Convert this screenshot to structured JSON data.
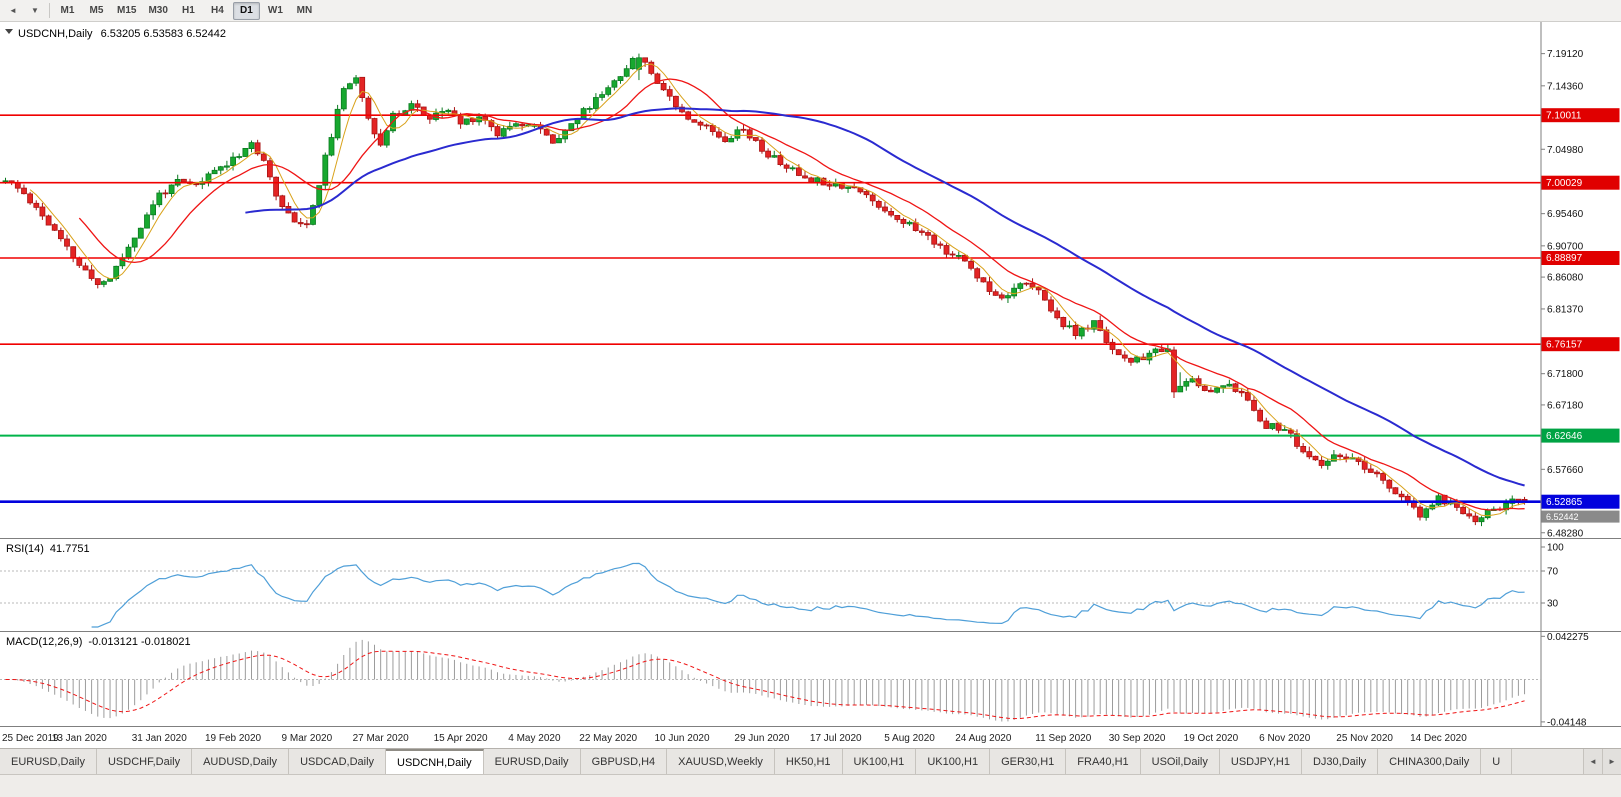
{
  "toolbar": {
    "left_icons": [
      {
        "name": "scroll-left-icon",
        "glyph": "◄"
      },
      {
        "name": "dropdown-icon",
        "glyph": "▼"
      }
    ],
    "timeframes": [
      "M1",
      "M5",
      "M15",
      "M30",
      "H1",
      "H4",
      "D1",
      "W1",
      "MN"
    ],
    "active_timeframe": "D1"
  },
  "chart": {
    "title": {
      "symbol": "USDCNH,Daily",
      "ohlc": "6.53205 6.53583 6.52442"
    },
    "y_axis": {
      "ticks": [
        "7.19120",
        "7.14360",
        "7.04980",
        "6.95460",
        "6.90700",
        "6.86080",
        "6.81370",
        "6.71800",
        "6.67180",
        "6.57660",
        "6.48280"
      ]
    },
    "x_axis": {
      "labels": [
        "25 Dec 2019",
        "13 Jan 2020",
        "31 Jan 2020",
        "19 Feb 2020",
        "9 Mar 2020",
        "27 Mar 2020",
        "15 Apr 2020",
        "4 May 2020",
        "22 May 2020",
        "10 Jun 2020",
        "29 Jun 2020",
        "17 Jul 2020",
        "5 Aug 2020",
        "24 Aug 2020",
        "11 Sep 2020",
        "30 Sep 2020",
        "19 Oct 2020",
        "6 Nov 2020",
        "25 Nov 2020",
        "14 Dec 2020"
      ],
      "label_days": [
        0,
        12,
        25,
        37,
        49,
        61,
        74,
        86,
        98,
        110,
        123,
        135,
        147,
        159,
        172,
        184,
        196,
        208,
        221,
        233
      ]
    },
    "level_badges": {
      "red": [
        "7.10011",
        "7.00029",
        "6.88897",
        "6.76157"
      ],
      "green": [
        "6.62646"
      ],
      "blue": [
        "6.52865"
      ],
      "bid": "6.52442"
    }
  },
  "chart_data": {
    "type": "candlestick",
    "symbol": "USDCNH",
    "timeframe": "Daily",
    "n_candles": 248,
    "seed": 11,
    "scale": {
      "price_max": 7.235,
      "price_min": 6.478
    },
    "price_anchors": [
      [
        0,
        7.003
      ],
      [
        3,
        6.985
      ],
      [
        6,
        6.952
      ],
      [
        9,
        6.915
      ],
      [
        12,
        6.878
      ],
      [
        15,
        6.85
      ],
      [
        17,
        6.86
      ],
      [
        20,
        6.906
      ],
      [
        23,
        6.95
      ],
      [
        25,
        6.984
      ],
      [
        28,
        7.0
      ],
      [
        31,
        6.996
      ],
      [
        34,
        7.018
      ],
      [
        37,
        7.036
      ],
      [
        40,
        7.06
      ],
      [
        42,
        7.028
      ],
      [
        44,
        6.986
      ],
      [
        46,
        6.952
      ],
      [
        49,
        6.936
      ],
      [
        51,
        7.0
      ],
      [
        53,
        7.072
      ],
      [
        55,
        7.135
      ],
      [
        57,
        7.16
      ],
      [
        59,
        7.098
      ],
      [
        61,
        7.055
      ],
      [
        63,
        7.098
      ],
      [
        66,
        7.118
      ],
      [
        69,
        7.094
      ],
      [
        72,
        7.108
      ],
      [
        74,
        7.088
      ],
      [
        77,
        7.1
      ],
      [
        80,
        7.074
      ],
      [
        83,
        7.092
      ],
      [
        86,
        7.084
      ],
      [
        89,
        7.062
      ],
      [
        92,
        7.088
      ],
      [
        95,
        7.114
      ],
      [
        98,
        7.142
      ],
      [
        101,
        7.172
      ],
      [
        103,
        7.186
      ],
      [
        105,
        7.163
      ],
      [
        107,
        7.14
      ],
      [
        109,
        7.116
      ],
      [
        111,
        7.098
      ],
      [
        114,
        7.082
      ],
      [
        117,
        7.066
      ],
      [
        120,
        7.082
      ],
      [
        123,
        7.048
      ],
      [
        126,
        7.03
      ],
      [
        129,
        7.012
      ],
      [
        132,
        7.004
      ],
      [
        135,
        6.999
      ],
      [
        138,
        6.993
      ],
      [
        141,
        6.974
      ],
      [
        144,
        6.954
      ],
      [
        147,
        6.938
      ],
      [
        150,
        6.92
      ],
      [
        153,
        6.9
      ],
      [
        156,
        6.884
      ],
      [
        159,
        6.852
      ],
      [
        162,
        6.83
      ],
      [
        165,
        6.854
      ],
      [
        168,
        6.838
      ],
      [
        171,
        6.8
      ],
      [
        174,
        6.776
      ],
      [
        177,
        6.792
      ],
      [
        180,
        6.756
      ],
      [
        183,
        6.732
      ],
      [
        186,
        6.748
      ],
      [
        189,
        6.752
      ],
      [
        191,
        6.694
      ],
      [
        193,
        6.71
      ],
      [
        196,
        6.69
      ],
      [
        199,
        6.706
      ],
      [
        202,
        6.676
      ],
      [
        205,
        6.642
      ],
      [
        208,
        6.636
      ],
      [
        211,
        6.602
      ],
      [
        214,
        6.58
      ],
      [
        217,
        6.6
      ],
      [
        221,
        6.578
      ],
      [
        224,
        6.558
      ],
      [
        227,
        6.536
      ],
      [
        230,
        6.506
      ],
      [
        233,
        6.534
      ],
      [
        236,
        6.52
      ],
      [
        239,
        6.502
      ],
      [
        242,
        6.518
      ],
      [
        245,
        6.528
      ],
      [
        247,
        6.529
      ]
    ],
    "override_candles": {
      "103": [
        7.168,
        7.1912,
        7.152,
        7.185
      ],
      "190": [
        6.753,
        6.758,
        6.682,
        6.691
      ],
      "247": [
        6.53205,
        6.53583,
        6.52442,
        6.52865
      ]
    },
    "moving_averages": [
      {
        "period": 5,
        "color": "#d9a21b",
        "width": 1
      },
      {
        "period": 13,
        "color": "#ef1515",
        "width": 1.3
      },
      {
        "period": 40,
        "color": "#2a2ad0",
        "width": 2
      }
    ],
    "horizontal_lines": [
      {
        "value": 7.10011,
        "color": "#f00000",
        "width": 1.6
      },
      {
        "value": 7.00029,
        "color": "#f00000",
        "width": 1.6
      },
      {
        "value": 6.88897,
        "color": "#f00000",
        "width": 1.6
      },
      {
        "value": 6.76157,
        "color": "#f00000",
        "width": 1.6
      },
      {
        "value": 6.62646,
        "color": "#00b44a",
        "width": 2
      },
      {
        "value": 6.52865,
        "color": "#0202dd",
        "width": 2.6
      }
    ],
    "colors": {
      "up": "#17a82f",
      "up_border": "#0a7a20",
      "down": "#e32424",
      "down_border": "#a81414"
    }
  },
  "rsi": {
    "name": "RSI(14)",
    "value": "41.7751",
    "period": 14,
    "axis_ticks": [
      "100",
      "70",
      "30"
    ],
    "guide_levels": [
      70,
      30
    ],
    "line_color": "#4f9fd8"
  },
  "macd": {
    "name": "MACD(12,26,9)",
    "values": "-0.013121 -0.018021",
    "fast": 12,
    "slow": 26,
    "signal": 9,
    "axis_ticks": [
      "0.042275",
      "-0.04148"
    ],
    "axis_max": 0.042275,
    "axis_min": -0.04148,
    "hist_color": "#9c9c9c",
    "signal_color": "#ef1515"
  },
  "tabs": {
    "items": [
      "EURUSD,Daily",
      "USDCHF,Daily",
      "AUDUSD,Daily",
      "USDCAD,Daily",
      "USDCNH,Daily",
      "EURUSD,Daily",
      "GBPUSD,H4",
      "XAUUSD,Weekly",
      "HK50,H1",
      "UK100,H1",
      "UK100,H1",
      "GER30,H1",
      "FRA40,H1",
      "USOil,Daily",
      "USDJPY,H1",
      "DJ30,Daily",
      "CHINA300,Daily",
      "U"
    ],
    "active_index": 4,
    "scroll_arrows": [
      "◄",
      "►"
    ]
  }
}
